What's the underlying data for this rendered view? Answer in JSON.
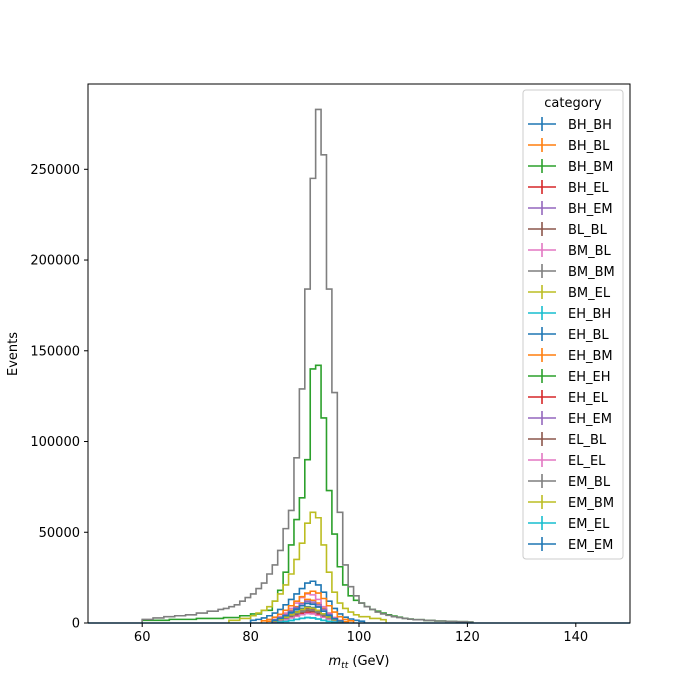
{
  "chart_data": {
    "type": "line",
    "title": "",
    "xlabel_main": "m",
    "xlabel_sub": "tt",
    "xlabel_unit": " (GeV)",
    "ylabel": "Events",
    "xlim": [
      50,
      150
    ],
    "ylim": [
      0,
      297000
    ],
    "xticks": [
      60,
      80,
      100,
      120,
      140
    ],
    "yticks": [
      0,
      50000,
      100000,
      150000,
      200000,
      250000
    ],
    "bin_width": 1,
    "legend_title": "category",
    "legend_placement": "top-right",
    "series": [
      {
        "name": "BH_BH",
        "color": "#1f77b4",
        "x": [
          84,
          85,
          86,
          87,
          88,
          89,
          90,
          91,
          92,
          93,
          94,
          95,
          96
        ],
        "values": [
          1000,
          2000,
          3500,
          5000,
          6500,
          8000,
          9000,
          8500,
          7000,
          5000,
          3000,
          1500,
          800
        ]
      },
      {
        "name": "BH_BL",
        "color": "#ff7f0e",
        "x": [
          83,
          84,
          85,
          86,
          87,
          88,
          89,
          90,
          91,
          92,
          93,
          94,
          95,
          96,
          97
        ],
        "values": [
          1000,
          2000,
          3500,
          5000,
          7000,
          9000,
          11000,
          13000,
          12500,
          11000,
          8000,
          5500,
          3000,
          1500,
          800
        ]
      },
      {
        "name": "BH_BM",
        "color": "#2ca02c",
        "x": [
          60,
          65,
          70,
          75,
          78,
          80,
          82,
          84,
          85,
          86,
          87,
          88,
          89,
          90,
          91,
          92,
          93,
          94,
          95,
          96,
          97,
          98,
          99,
          100,
          101,
          102,
          103,
          104,
          105,
          106,
          107,
          108,
          109,
          110,
          112,
          114,
          116,
          118,
          120
        ],
        "values": [
          1500,
          2000,
          2500,
          3000,
          4000,
          5000,
          7000,
          12000,
          18000,
          28000,
          43000,
          57000,
          69000,
          90000,
          140000,
          142000,
          113000,
          73000,
          49000,
          31000,
          21000,
          15000,
          12500,
          11000,
          9000,
          7500,
          6500,
          5500,
          4500,
          3800,
          3200,
          2600,
          2200,
          1800,
          1400,
          1100,
          900,
          700,
          500
        ]
      },
      {
        "name": "BH_EL",
        "color": "#d62728",
        "x": [
          84,
          85,
          86,
          87,
          88,
          89,
          90,
          91,
          92,
          93,
          94,
          95,
          96
        ],
        "values": [
          800,
          1500,
          2500,
          4000,
          5500,
          7000,
          8000,
          7500,
          6500,
          4500,
          2800,
          1500,
          700
        ]
      },
      {
        "name": "BH_EM",
        "color": "#9467bd",
        "x": [
          84,
          85,
          86,
          87,
          88,
          89,
          90,
          91,
          92,
          93,
          94,
          95,
          96
        ],
        "values": [
          1500,
          2500,
          4000,
          6000,
          8000,
          9500,
          11000,
          10500,
          9000,
          6500,
          4000,
          2000,
          1000
        ]
      },
      {
        "name": "BL_BL",
        "color": "#8c564b",
        "x": [
          84,
          85,
          86,
          87,
          88,
          89,
          90,
          91,
          92,
          93,
          94,
          95,
          96
        ],
        "values": [
          1000,
          2000,
          3000,
          4500,
          6000,
          7500,
          8500,
          8000,
          6500,
          4500,
          2800,
          1500,
          800
        ]
      },
      {
        "name": "BM_BL",
        "color": "#e377c2",
        "x": [
          84,
          85,
          86,
          87,
          88,
          89,
          90,
          91,
          92,
          93,
          94,
          95,
          96
        ],
        "values": [
          2000,
          3500,
          5500,
          8000,
          11000,
          14000,
          16000,
          15500,
          13000,
          9000,
          5500,
          3000,
          1500
        ]
      },
      {
        "name": "BM_BM",
        "color": "#7f7f7f",
        "x": [
          60,
          62,
          64,
          66,
          68,
          70,
          72,
          74,
          75,
          76,
          77,
          78,
          79,
          80,
          81,
          82,
          83,
          84,
          85,
          86,
          87,
          88,
          89,
          90,
          91,
          92,
          93,
          94,
          95,
          96,
          97,
          98,
          99,
          100,
          101,
          102,
          103,
          104,
          105,
          106,
          107,
          108,
          109,
          110,
          112,
          114,
          116,
          118,
          120
        ],
        "values": [
          2000,
          2800,
          3500,
          4000,
          4500,
          5500,
          6500,
          7500,
          8000,
          9000,
          10000,
          12000,
          14000,
          16000,
          19000,
          22000,
          27000,
          32000,
          40000,
          52000,
          62000,
          91000,
          129000,
          184000,
          245000,
          283000,
          258000,
          184000,
          127000,
          61000,
          32000,
          20000,
          15000,
          11000,
          9000,
          7500,
          6000,
          5000,
          4200,
          3500,
          3000,
          2500,
          2100,
          1800,
          1400,
          1100,
          900,
          700,
          500
        ]
      },
      {
        "name": "BM_EL",
        "color": "#bcbd22",
        "x": [
          76,
          78,
          80,
          81,
          82,
          83,
          84,
          85,
          86,
          87,
          88,
          89,
          90,
          91,
          92,
          93,
          94,
          95,
          96,
          97,
          98,
          99,
          100,
          102,
          104
        ],
        "values": [
          1500,
          2500,
          4000,
          5500,
          7000,
          9000,
          12000,
          16000,
          21000,
          27000,
          35000,
          44000,
          55000,
          61000,
          58000,
          43000,
          28000,
          17000,
          11000,
          8000,
          6000,
          4500,
          3500,
          2500,
          1800
        ]
      },
      {
        "name": "EH_BH",
        "color": "#17becf",
        "x": [
          85,
          86,
          87,
          88,
          89,
          90,
          91,
          92,
          93,
          94,
          95
        ],
        "values": [
          500,
          900,
          1400,
          2000,
          2600,
          3000,
          2800,
          2200,
          1500,
          900,
          500
        ]
      },
      {
        "name": "EH_BL",
        "color": "#1f77b4",
        "x": [
          80,
          81,
          82,
          83,
          84,
          85,
          86,
          87,
          88,
          89,
          90,
          91,
          92,
          93,
          94,
          95,
          96,
          97,
          98,
          99,
          100
        ],
        "values": [
          1500,
          2000,
          2800,
          4000,
          5500,
          7500,
          10000,
          13000,
          16000,
          19000,
          22000,
          23000,
          21000,
          17000,
          12000,
          8000,
          5000,
          3200,
          2200,
          1500,
          1000
        ]
      },
      {
        "name": "EH_BM",
        "color": "#ff7f0e",
        "x": [
          82,
          83,
          84,
          85,
          86,
          87,
          88,
          89,
          90,
          91,
          92,
          93,
          94,
          95,
          96,
          97,
          98
        ],
        "values": [
          1200,
          2000,
          3200,
          4800,
          7000,
          9500,
          12000,
          14500,
          16500,
          17500,
          16500,
          13500,
          9500,
          6000,
          3500,
          2000,
          1200
        ]
      },
      {
        "name": "EH_EH",
        "color": "#2ca02c",
        "x": [
          84,
          85,
          86,
          87,
          88,
          89,
          90,
          91,
          92,
          93,
          94,
          95,
          96
        ],
        "values": [
          1500,
          2500,
          3500,
          4500,
          5500,
          6500,
          7000,
          6800,
          6000,
          4800,
          3500,
          2200,
          1200
        ]
      },
      {
        "name": "EH_EL",
        "color": "#d62728",
        "x": [
          84,
          85,
          86,
          87,
          88,
          89,
          90,
          91,
          92,
          93,
          94,
          95,
          96
        ],
        "values": [
          800,
          1400,
          2200,
          3200,
          4200,
          5200,
          5800,
          5500,
          4800,
          3600,
          2400,
          1400,
          700
        ]
      },
      {
        "name": "EH_EM",
        "color": "#9467bd",
        "x": [
          84,
          85,
          86,
          87,
          88,
          89,
          90,
          91,
          92,
          93,
          94,
          95,
          96
        ],
        "values": [
          1800,
          3000,
          4500,
          6500,
          8500,
          10500,
          12000,
          11500,
          10000,
          7500,
          4800,
          2600,
          1300
        ]
      },
      {
        "name": "EL_BL",
        "color": "#8c564b",
        "x": [
          84,
          85,
          86,
          87,
          88,
          89,
          90,
          91,
          92,
          93,
          94,
          95,
          96
        ],
        "values": [
          900,
          1600,
          2500,
          3600,
          4800,
          6000,
          6800,
          6500,
          5500,
          4000,
          2600,
          1400,
          700
        ]
      },
      {
        "name": "EL_EL",
        "color": "#e377c2",
        "x": [
          84,
          85,
          86,
          87,
          88,
          89,
          90,
          91,
          92,
          93,
          94,
          95,
          96
        ],
        "values": [
          700,
          1200,
          1900,
          2800,
          3700,
          4600,
          5200,
          5000,
          4200,
          3100,
          2000,
          1100,
          600
        ]
      },
      {
        "name": "EM_BL",
        "color": "#7f7f7f",
        "x": [
          84,
          85,
          86,
          87,
          88,
          89,
          90,
          91,
          92,
          93,
          94,
          95,
          96
        ],
        "values": [
          1000,
          1800,
          2800,
          4000,
          5200,
          6500,
          7400,
          7100,
          6000,
          4400,
          2900,
          1600,
          800
        ]
      },
      {
        "name": "EM_BM",
        "color": "#bcbd22",
        "x": [
          84,
          85,
          86,
          87,
          88,
          89,
          90,
          91,
          92,
          93,
          94,
          95,
          96
        ],
        "values": [
          1200,
          2000,
          3200,
          4600,
          6000,
          7500,
          8600,
          8200,
          7000,
          5100,
          3300,
          1800,
          900
        ]
      },
      {
        "name": "EM_EL",
        "color": "#17becf",
        "x": [
          85,
          86,
          87,
          88,
          89,
          90,
          91,
          92,
          93,
          94,
          95
        ],
        "values": [
          500,
          900,
          1400,
          2000,
          2600,
          3000,
          2800,
          2200,
          1500,
          900,
          500
        ]
      },
      {
        "name": "EM_EM",
        "color": "#1f77b4",
        "x": [
          84,
          85,
          86,
          87,
          88,
          89,
          90,
          91,
          92,
          93,
          94,
          95,
          96
        ],
        "values": [
          1500,
          2600,
          4000,
          5800,
          7600,
          9500,
          10800,
          10300,
          8800,
          6500,
          4200,
          2300,
          1100
        ]
      }
    ]
  }
}
